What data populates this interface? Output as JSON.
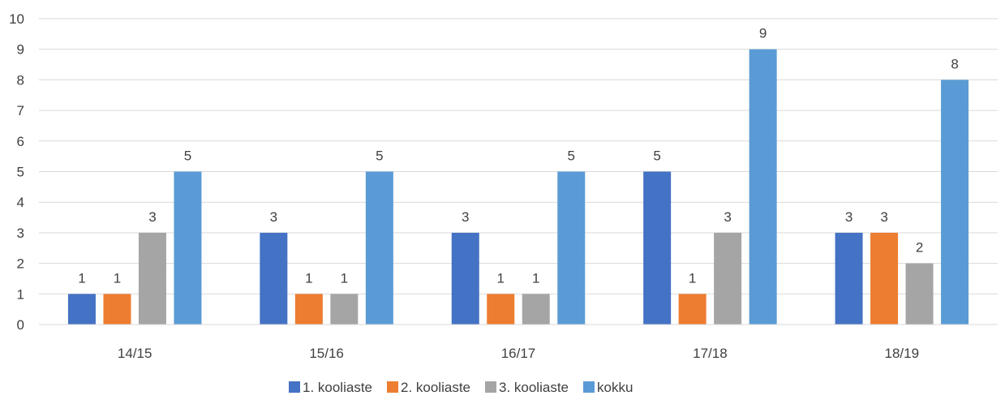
{
  "chart_data": {
    "type": "bar",
    "title": "",
    "xlabel": "",
    "ylabel": "",
    "ylim": [
      0,
      10
    ],
    "yticks": [
      "0",
      "1",
      "2",
      "3",
      "4",
      "5",
      "6",
      "7",
      "8",
      "9",
      "10"
    ],
    "grid": true,
    "legend_position": "bottom",
    "categories": [
      "14/15",
      "15/16",
      "16/17",
      "17/18",
      "18/19"
    ],
    "series": [
      {
        "name": "1. kooliaste",
        "color": "#4472C4",
        "values": [
          1,
          3,
          3,
          5,
          3
        ]
      },
      {
        "name": "2. kooliaste",
        "color": "#ED7D31",
        "values": [
          1,
          1,
          1,
          1,
          3
        ]
      },
      {
        "name": "3. kooliaste",
        "color": "#A5A5A5",
        "values": [
          3,
          1,
          1,
          3,
          2
        ]
      },
      {
        "name": "kokku",
        "color": "#5B9BD5",
        "values": [
          5,
          5,
          5,
          9,
          8
        ]
      }
    ]
  }
}
